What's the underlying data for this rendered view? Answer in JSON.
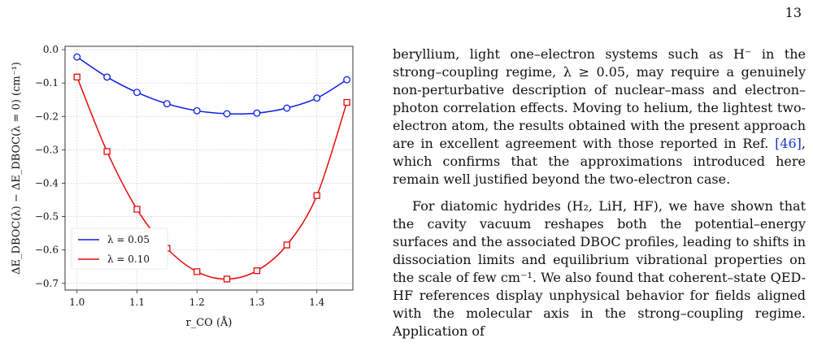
{
  "page_number": "13",
  "chart_data": {
    "type": "line",
    "title": "",
    "xlabel": "r_CO (Å)",
    "ylabel": "ΔE_DBOC(λ) − ΔE_DBOC(λ = 0) (cm⁻¹)",
    "xlim": [
      0.98,
      1.46
    ],
    "ylim": [
      -0.72,
      0.01
    ],
    "xticks": [
      1.0,
      1.1,
      1.2,
      1.3,
      1.4
    ],
    "xtick_labels": [
      "1.0",
      "1.1",
      "1.2",
      "1.3",
      "1.4"
    ],
    "yticks": [
      0.0,
      -0.1,
      -0.2,
      -0.3,
      -0.4,
      -0.5,
      -0.6,
      -0.7
    ],
    "ytick_labels": [
      "0.0",
      "−0.1",
      "−0.2",
      "−0.3",
      "−0.4",
      "−0.5",
      "−0.6",
      "−0.7"
    ],
    "grid": true,
    "legend_position": "lower-left",
    "x": [
      1.0,
      1.05,
      1.1,
      1.15,
      1.2,
      1.25,
      1.3,
      1.35,
      1.4,
      1.45
    ],
    "series": [
      {
        "name": "λ = 0.05",
        "color": "#0a1ee6",
        "marker": "circle",
        "values": [
          -0.022,
          -0.082,
          -0.128,
          -0.162,
          -0.183,
          -0.192,
          -0.19,
          -0.175,
          -0.145,
          -0.09
        ]
      },
      {
        "name": "λ = 0.10",
        "color": "#e60a0a",
        "marker": "square",
        "values": [
          -0.082,
          -0.305,
          -0.478,
          -0.595,
          -0.665,
          -0.687,
          -0.662,
          -0.585,
          -0.437,
          -0.158
        ]
      }
    ]
  },
  "text": {
    "para1": "beryllium, light one–electron systems such as H⁻ in the strong–coupling regime, λ ≥ 0.05, may require a genuinely non-perturbative description of nuclear–mass and electron–photon correlation effects. Moving to helium, the lightest two-electron atom, the results obtained with the present approach are in excellent agreement with those reported in Ref.",
    "ref": "[46]",
    "para1_end": ", which confirms that the approximations introduced here remain well justified beyond the two-electron case.",
    "para2": "For diatomic hydrides (H₂, LiH, HF), we have shown that the cavity vacuum reshapes both the potential–energy surfaces and the associated DBOC profiles, leading to shifts in dissociation limits and equilibrium vibrational properties on the scale of few cm⁻¹. We also found that coherent–state QED-HF references display unphysical behavior for fields aligned with the molecular axis in the strong–coupling regime. Application of"
  }
}
